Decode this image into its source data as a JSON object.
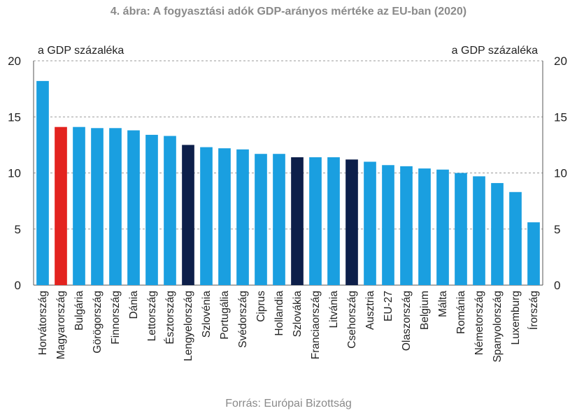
{
  "chart_data": {
    "type": "bar",
    "title": "4. ábra: A fogyasztási adók GDP-arányos mértéke az EU-ban (2020)",
    "ylabel_left": "a GDP százaléka",
    "ylabel_right": "a GDP százaléka",
    "source": "Forrás: Európai Bizottság",
    "ylim": [
      0,
      20
    ],
    "yticks": [
      0,
      5,
      10,
      15,
      20
    ],
    "grid": "horizontal dashed",
    "categories": [
      "Horvátország",
      "Magyarország",
      "Bulgária",
      "Görögország",
      "Finnország",
      "Dánia",
      "Lettország",
      "Észtország",
      "Lengyelország",
      "Szlovénia",
      "Portugália",
      "Svédország",
      "Ciprus",
      "Hollandia",
      "Szlovákia",
      "Franciaország",
      "Litvánia",
      "Csehország",
      "Ausztria",
      "EU-27",
      "Olaszország",
      "Belgium",
      "Málta",
      "Románia",
      "Németország",
      "Spanyolország",
      "Luxemburg",
      "Írország"
    ],
    "values": [
      18.2,
      14.1,
      14.1,
      14.0,
      14.0,
      13.8,
      13.4,
      13.3,
      12.5,
      12.3,
      12.2,
      12.1,
      11.7,
      11.7,
      11.4,
      11.4,
      11.4,
      11.2,
      11.0,
      10.7,
      10.6,
      10.4,
      10.3,
      10.0,
      9.7,
      9.1,
      8.3,
      5.6
    ],
    "colors": [
      "#1a9fe0",
      "#e3231f",
      "#1a9fe0",
      "#1a9fe0",
      "#1a9fe0",
      "#1a9fe0",
      "#1a9fe0",
      "#1a9fe0",
      "#0d1f4a",
      "#1a9fe0",
      "#1a9fe0",
      "#1a9fe0",
      "#1a9fe0",
      "#1a9fe0",
      "#0d1f4a",
      "#1a9fe0",
      "#1a9fe0",
      "#0d1f4a",
      "#1a9fe0",
      "#1a9fe0",
      "#1a9fe0",
      "#1a9fe0",
      "#1a9fe0",
      "#1a9fe0",
      "#1a9fe0",
      "#1a9fe0",
      "#1a9fe0",
      "#1a9fe0"
    ]
  }
}
